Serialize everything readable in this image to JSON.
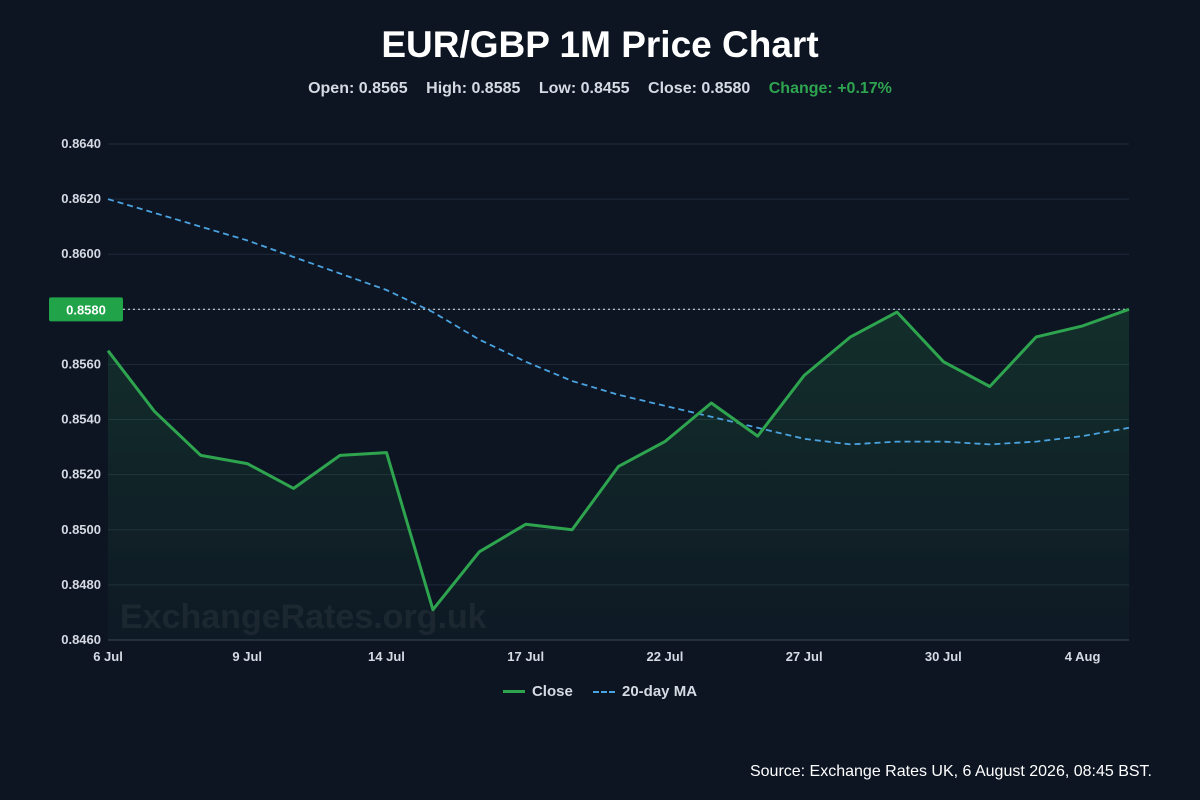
{
  "header": {
    "title": "EUR/GBP 1M Price Chart",
    "open": "Open: 0.8565",
    "high": "High: 0.8585",
    "low": "Low: 0.8455",
    "close": "Close: 0.8580",
    "change": "Change: +0.17%"
  },
  "legend": {
    "close": "Close",
    "ma": "20-day MA"
  },
  "watermark": "ExchangeRates.org.uk",
  "source": "Source: Exchange Rates UK, 6 August 2026, 08:45 BST.",
  "colors": {
    "background": "#0d1523",
    "close_line": "#2ea44f",
    "ma_line": "#4aa3df",
    "grid": "#1e2a3b",
    "change_positive": "#2ea44f"
  },
  "chart_data": {
    "type": "line",
    "x": [
      "6 Jul",
      "7 Jul",
      "8 Jul",
      "9 Jul",
      "10 Jul",
      "13 Jul",
      "14 Jul",
      "15 Jul",
      "16 Jul",
      "17 Jul",
      "20 Jul",
      "21 Jul",
      "22 Jul",
      "23 Jul",
      "24 Jul",
      "27 Jul",
      "28 Jul",
      "29 Jul",
      "30 Jul",
      "31 Jul",
      "3 Aug",
      "4 Aug",
      "5 Aug"
    ],
    "x_tick_labels": [
      "6 Jul",
      "9 Jul",
      "14 Jul",
      "17 Jul",
      "22 Jul",
      "27 Jul",
      "30 Jul",
      "4 Aug"
    ],
    "series": [
      {
        "name": "Close",
        "color": "#2ea44f",
        "style": "solid",
        "area_fill": true,
        "values": [
          0.8565,
          0.8543,
          0.8527,
          0.8524,
          0.8515,
          0.8527,
          0.8528,
          0.8471,
          0.8492,
          0.8502,
          0.85,
          0.8523,
          0.8532,
          0.8546,
          0.8534,
          0.8556,
          0.857,
          0.8579,
          0.8561,
          0.8552,
          0.857,
          0.8574,
          0.858
        ]
      },
      {
        "name": "20-day MA",
        "color": "#4aa3df",
        "style": "dashed",
        "values": [
          0.862,
          0.8615,
          0.861,
          0.8605,
          0.8599,
          0.8593,
          0.8587,
          0.8579,
          0.8569,
          0.8561,
          0.8554,
          0.8549,
          0.8545,
          0.8541,
          0.8537,
          0.8533,
          0.8531,
          0.8532,
          0.8532,
          0.8531,
          0.8532,
          0.8534,
          0.8537
        ]
      }
    ],
    "ylim": [
      0.846,
      0.864
    ],
    "y_ticks": [
      "0.8460",
      "0.8480",
      "0.8500",
      "0.8520",
      "0.8540",
      "0.8560",
      "0.8580",
      "0.8600",
      "0.8620",
      "0.8640"
    ],
    "current_price": 0.858,
    "current_price_label": "0.8580",
    "grid": true,
    "legend_position": "bottom"
  }
}
